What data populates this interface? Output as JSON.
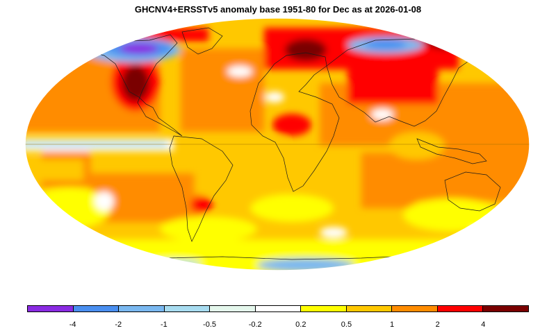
{
  "title": "GHCNV4+ERSSTv5 anomaly base 1951-80 for Dec as at 2026-01-08",
  "legend": {
    "colors": [
      "#8a2be2",
      "#4a8ff0",
      "#7ab8f0",
      "#a8dcf0",
      "#e4f7ec",
      "#ffffff",
      "#ffff00",
      "#ffc800",
      "#ff8c00",
      "#ff0000",
      "#7a0000"
    ],
    "labels": [
      "-4",
      "-2",
      "-1",
      "-0.5",
      "-0.2",
      "0.2",
      "0.5",
      "1",
      "2",
      "4"
    ]
  },
  "colors": {
    "land_outline": "#1a1a1a",
    "equator_line": "#a07000"
  }
}
